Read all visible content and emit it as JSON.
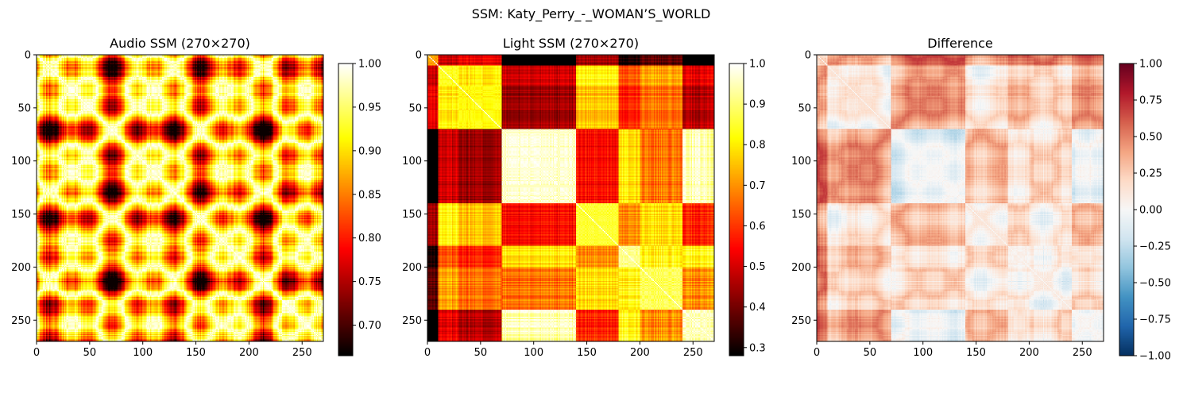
{
  "figure": {
    "suptitle": "SSM: Katy_Perry_-_WOMAN’S_WORLD"
  },
  "chart_data": [
    {
      "type": "heatmap",
      "title": "Audio SSM (270×270)",
      "matrix_size": 270,
      "colormap": "hot",
      "xlim": [
        0,
        270
      ],
      "ylim": [
        270,
        0
      ],
      "xticks": [
        0,
        50,
        100,
        150,
        200,
        250
      ],
      "yticks": [
        0,
        50,
        100,
        150,
        200,
        250
      ],
      "colorbar": {
        "min": 0.665,
        "max": 1.0,
        "ticks": [
          "0.70",
          "0.75",
          "0.80",
          "0.85",
          "0.90",
          "0.95",
          "1.00"
        ],
        "tick_values": [
          0.7,
          0.75,
          0.8,
          0.85,
          0.9,
          0.95,
          1.0
        ]
      }
    },
    {
      "type": "heatmap",
      "title": "Light SSM (270×270)",
      "matrix_size": 270,
      "colormap": "hot",
      "xlim": [
        0,
        270
      ],
      "ylim": [
        270,
        0
      ],
      "xticks": [
        0,
        50,
        100,
        150,
        200,
        250
      ],
      "yticks": [
        0,
        50,
        100,
        150,
        200,
        250
      ],
      "colorbar": {
        "min": 0.28,
        "max": 1.0,
        "ticks": [
          "0.3",
          "0.4",
          "0.5",
          "0.6",
          "0.7",
          "0.8",
          "0.9",
          "1.0"
        ],
        "tick_values": [
          0.3,
          0.4,
          0.5,
          0.6,
          0.7,
          0.8,
          0.9,
          1.0
        ]
      }
    },
    {
      "type": "heatmap",
      "title": "Difference",
      "matrix_size": 270,
      "colormap": "RdBu_r",
      "xlim": [
        0,
        270
      ],
      "ylim": [
        270,
        0
      ],
      "xticks": [
        0,
        50,
        100,
        150,
        200,
        250
      ],
      "yticks": [
        0,
        50,
        100,
        150,
        200,
        250
      ],
      "colorbar": {
        "min": -1.0,
        "max": 1.0,
        "ticks": [
          "1.00",
          "0.75",
          "0.50",
          "0.25",
          "0.00",
          "−0.25",
          "−0.50",
          "−0.75",
          "−1.00"
        ],
        "tick_values": [
          1.0,
          0.75,
          0.5,
          0.25,
          0.0,
          -0.25,
          -0.5,
          -0.75,
          -1.0
        ]
      }
    }
  ]
}
